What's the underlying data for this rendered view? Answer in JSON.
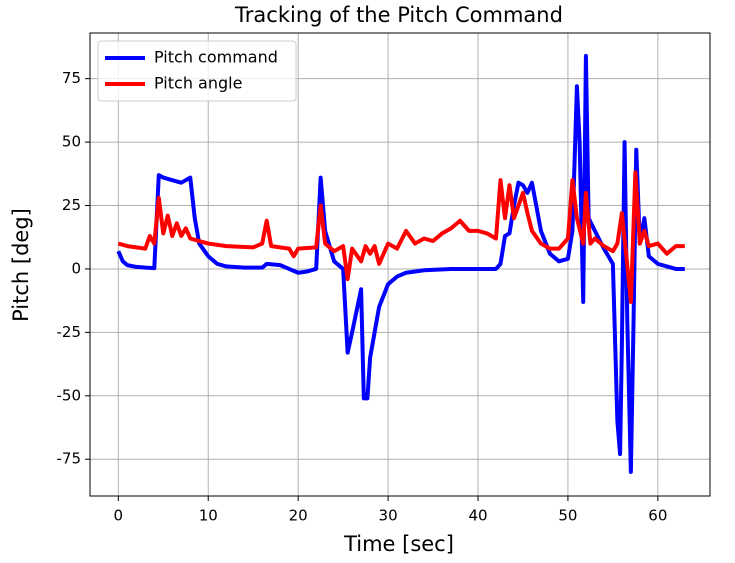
{
  "chart_data": {
    "type": "line",
    "title": "Tracking of the Pitch Command",
    "xlabel": "Time [sec]",
    "ylabel": "Pitch [deg]",
    "xlim": [
      -3.15,
      65.8
    ],
    "ylim": [
      -89.5,
      93
    ],
    "xticks": [
      0,
      10,
      20,
      30,
      40,
      50,
      60
    ],
    "yticks": [
      -75,
      -50,
      -25,
      0,
      25,
      50,
      75
    ],
    "grid": true,
    "legend": "upper left",
    "series": [
      {
        "name": "Pitch command",
        "color": "#0000ff",
        "x": [
          0,
          0.5,
          1,
          2,
          3,
          4,
          4.5,
          5,
          6,
          7,
          8,
          8.5,
          9,
          10,
          11,
          12,
          14,
          16,
          16.5,
          18,
          19,
          20,
          21,
          22,
          22.5,
          23,
          24,
          25,
          25.5,
          26,
          27,
          27.3,
          27.7,
          28,
          29,
          30,
          31,
          32,
          34,
          37,
          42,
          42.5,
          43,
          43.5,
          44,
          44.5,
          45,
          45.5,
          46,
          47,
          48,
          49,
          50,
          50.5,
          51,
          51.3,
          51.7,
          52,
          52.3,
          53,
          54,
          55,
          55.5,
          55.8,
          56,
          56.3,
          56.6,
          57,
          57.3,
          57.6,
          58,
          58.5,
          59,
          60,
          61,
          62,
          63
        ],
        "values": [
          7,
          3,
          1.5,
          0.8,
          0.5,
          0.3,
          37,
          36,
          35,
          34,
          36,
          20,
          10,
          5,
          2,
          1,
          0.5,
          0.5,
          2,
          1.5,
          0,
          -1.5,
          -1,
          0,
          36,
          15,
          3,
          0,
          -33,
          -25,
          -8,
          -51,
          -51,
          -35,
          -15,
          -6,
          -3,
          -1.5,
          -0.5,
          0,
          0,
          2,
          13,
          14,
          25,
          34,
          33,
          30,
          34,
          15,
          6,
          3,
          4,
          15,
          72,
          50,
          -13,
          84,
          20,
          15,
          8,
          2,
          -60,
          -73,
          -30,
          50,
          -20,
          -80,
          -20,
          47,
          10,
          20,
          5,
          2,
          1,
          0,
          0
        ]
      },
      {
        "name": "Pitch angle",
        "color": "#ff0000",
        "x": [
          0,
          1,
          2,
          3,
          3.5,
          4,
          4.5,
          5,
          5.5,
          6,
          6.5,
          7,
          7.5,
          8,
          9,
          10,
          12,
          15,
          16,
          16.5,
          17,
          18,
          19,
          19.5,
          20,
          22,
          22.5,
          23,
          24,
          25,
          25.5,
          26,
          27,
          27.5,
          28,
          28.5,
          29,
          30,
          31,
          32,
          33,
          34,
          35,
          36,
          37,
          38,
          39,
          40,
          41,
          42,
          42.5,
          43,
          43.5,
          44,
          45,
          45.5,
          46,
          47,
          48,
          49,
          50,
          50.5,
          51,
          51.7,
          52,
          52.5,
          53,
          54,
          55,
          55.5,
          56,
          56.5,
          57,
          57.5,
          58,
          58.5,
          59,
          60,
          61,
          62,
          63
        ],
        "values": [
          10,
          9,
          8.5,
          8,
          13,
          10,
          28,
          14,
          21,
          13,
          18,
          13,
          16,
          12,
          11,
          10,
          9,
          8.5,
          10,
          19,
          9,
          8.5,
          8,
          5,
          8,
          8.5,
          25,
          10,
          7,
          9,
          -4,
          8,
          3,
          9,
          6,
          9,
          2,
          10,
          8,
          15,
          10,
          12,
          11,
          14,
          16,
          19,
          15,
          15,
          14,
          12,
          35,
          20,
          33,
          20,
          30,
          22,
          15,
          10,
          8,
          8,
          12,
          35,
          20,
          10,
          30,
          10,
          12,
          9,
          7,
          10,
          22,
          5,
          -13,
          38,
          10,
          15,
          9,
          10,
          6,
          9,
          9
        ]
      }
    ]
  }
}
